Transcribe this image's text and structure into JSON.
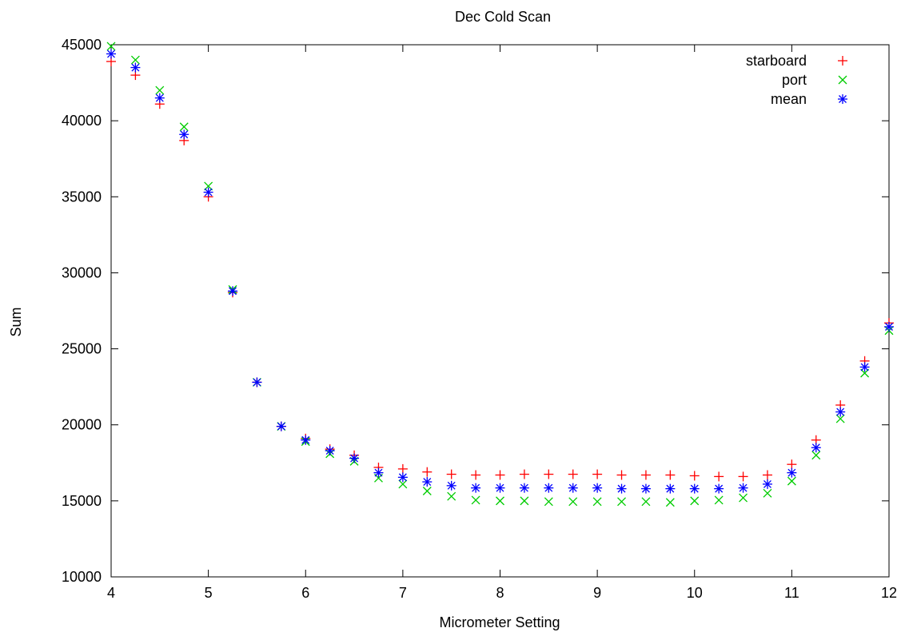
{
  "chart_data": {
    "type": "scatter",
    "title": "Dec Cold Scan",
    "xlabel": "Micrometer Setting",
    "ylabel": "Sum",
    "xlim": [
      4,
      12
    ],
    "ylim": [
      10000,
      45000
    ],
    "xticks": [
      4,
      5,
      6,
      7,
      8,
      9,
      10,
      11,
      12
    ],
    "yticks": [
      10000,
      15000,
      20000,
      25000,
      30000,
      35000,
      40000,
      45000
    ],
    "grid": false,
    "legend_position": "top-right",
    "x": [
      4,
      4.25,
      4.5,
      4.75,
      5,
      5.25,
      5.5,
      5.75,
      6,
      6.25,
      6.5,
      6.75,
      7,
      7.25,
      7.5,
      7.75,
      8,
      8.25,
      8.5,
      8.75,
      9,
      9.25,
      9.5,
      9.75,
      10,
      10.25,
      10.5,
      10.75,
      11,
      11.25,
      11.5,
      11.75,
      12
    ],
    "series": [
      {
        "name": "starboard",
        "marker": "plus",
        "color": "#ff0000",
        "values": [
          43900,
          43000,
          41100,
          38700,
          35000,
          28700,
          22800,
          19900,
          19100,
          18400,
          18000,
          17200,
          17100,
          16900,
          16750,
          16700,
          16700,
          16750,
          16750,
          16750,
          16750,
          16700,
          16700,
          16700,
          16650,
          16600,
          16600,
          16700,
          17400,
          19000,
          21300,
          24200,
          26700
        ]
      },
      {
        "name": "port",
        "marker": "cross",
        "color": "#00cc00",
        "values": [
          44900,
          44000,
          42000,
          39600,
          35700,
          28900,
          22800,
          19900,
          18900,
          18100,
          17600,
          16500,
          16100,
          15650,
          15300,
          15050,
          15000,
          15000,
          14950,
          14950,
          14950,
          14950,
          14950,
          14900,
          15000,
          15050,
          15200,
          15500,
          16300,
          18000,
          20400,
          23400,
          26200
        ]
      },
      {
        "name": "mean",
        "marker": "star",
        "color": "#0000ff",
        "values": [
          44400,
          43500,
          41500,
          39100,
          35300,
          28800,
          22800,
          19900,
          19000,
          18300,
          17800,
          16850,
          16550,
          16250,
          16000,
          15850,
          15850,
          15850,
          15850,
          15850,
          15850,
          15800,
          15800,
          15800,
          15800,
          15800,
          15850,
          16100,
          16850,
          18500,
          20850,
          23800,
          26450
        ]
      }
    ]
  }
}
